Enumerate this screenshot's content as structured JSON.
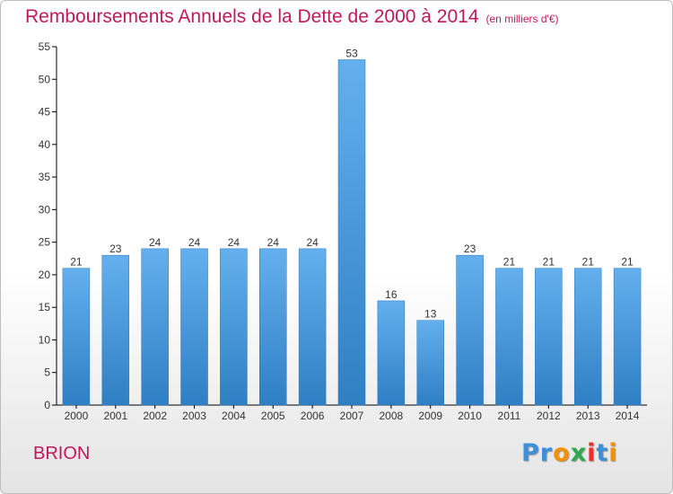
{
  "header": {
    "title": "Remboursements Annuels de la Dette de 2000 à 2014",
    "unit": "(en milliers d'€)"
  },
  "footer": {
    "commune": "BRION",
    "logo_text": "Proxiti",
    "logo_colors": [
      "#3d8fd6",
      "#3d8fd6",
      "#f39200",
      "#2fa84f",
      "#e8312a",
      "#3d8fd6",
      "#f39200"
    ]
  },
  "colors": {
    "title": "#c2185b",
    "bar_light": "#64b0ee",
    "bar_dark": "#2f7fc4",
    "axis": "#000000",
    "grid": "#d8d8d8",
    "label": "#333333"
  },
  "chart_data": {
    "type": "bar",
    "title": "Remboursements Annuels de la Dette de 2000 à 2014",
    "subtitle": "(en milliers d'€)",
    "xlabel": "",
    "ylabel": "",
    "categories": [
      "2000",
      "2001",
      "2002",
      "2003",
      "2004",
      "2005",
      "2006",
      "2007",
      "2008",
      "2009",
      "2010",
      "2011",
      "2012",
      "2013",
      "2014"
    ],
    "values": [
      21,
      23,
      24,
      24,
      24,
      24,
      24,
      53,
      16,
      13,
      23,
      21,
      21,
      21,
      21
    ],
    "ylim": [
      0,
      55
    ],
    "yticks": [
      0,
      5,
      10,
      15,
      20,
      25,
      30,
      35,
      40,
      45,
      50,
      55
    ],
    "data_labels": true,
    "grid": false,
    "legend": "none"
  }
}
